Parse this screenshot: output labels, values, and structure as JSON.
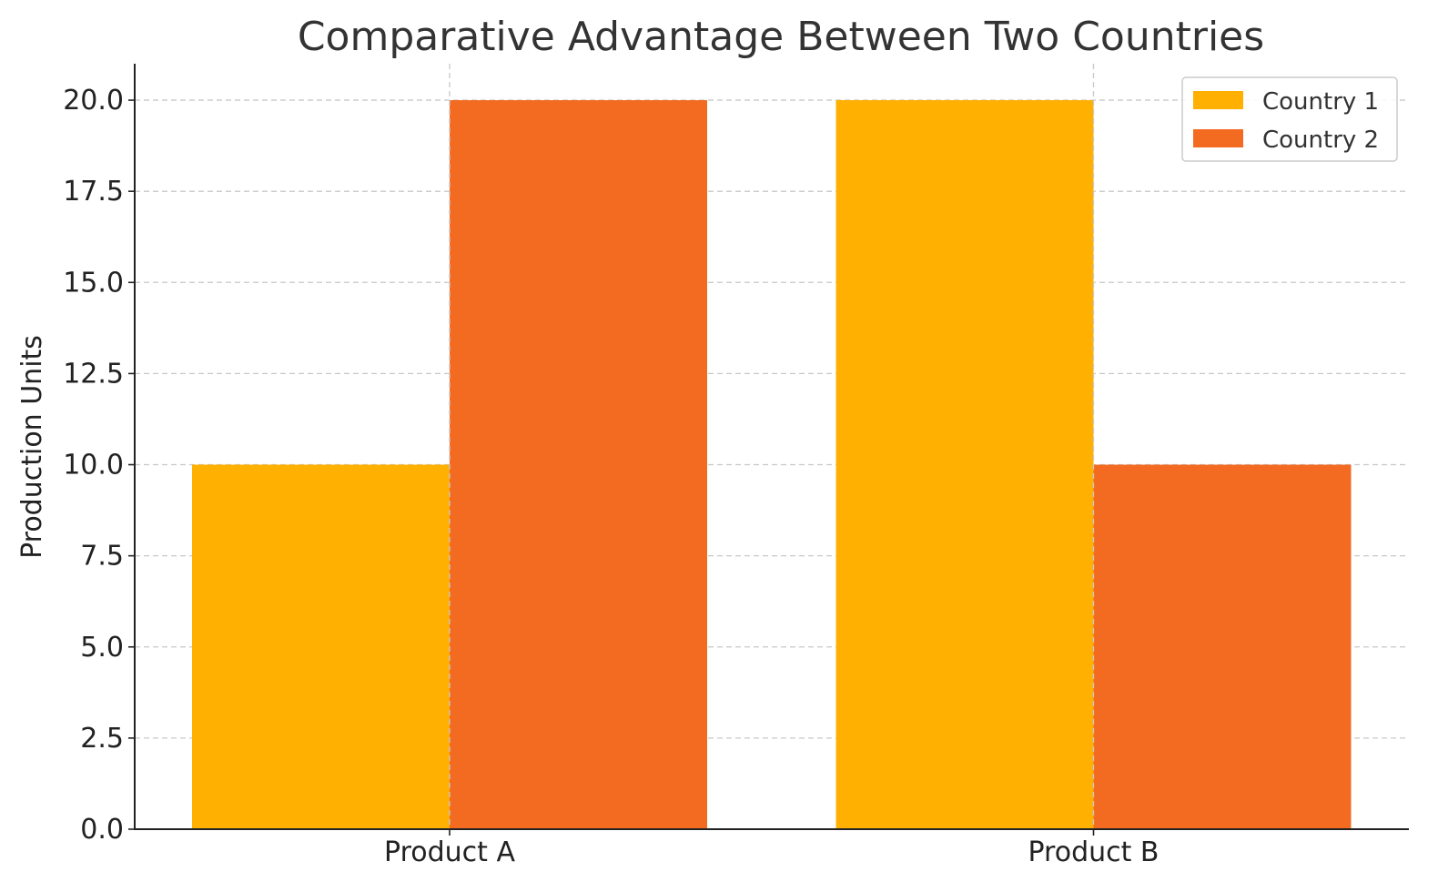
{
  "chart_data": {
    "type": "bar",
    "title": "Comparative Advantage Between Two Countries",
    "xlabel": "",
    "ylabel": "Production Units",
    "categories": [
      "Product A",
      "Product B"
    ],
    "series": [
      {
        "name": "Country 1",
        "color": "#FFB000",
        "values": [
          10,
          20
        ]
      },
      {
        "name": "Country 2",
        "color": "#F26B21",
        "values": [
          20,
          10
        ]
      }
    ],
    "ylim": [
      0,
      21
    ],
    "yticks": [
      "0.0",
      "2.5",
      "5.0",
      "7.5",
      "10.0",
      "12.5",
      "15.0",
      "17.5",
      "20.0"
    ],
    "grid": true,
    "legend_position": "top-right"
  }
}
